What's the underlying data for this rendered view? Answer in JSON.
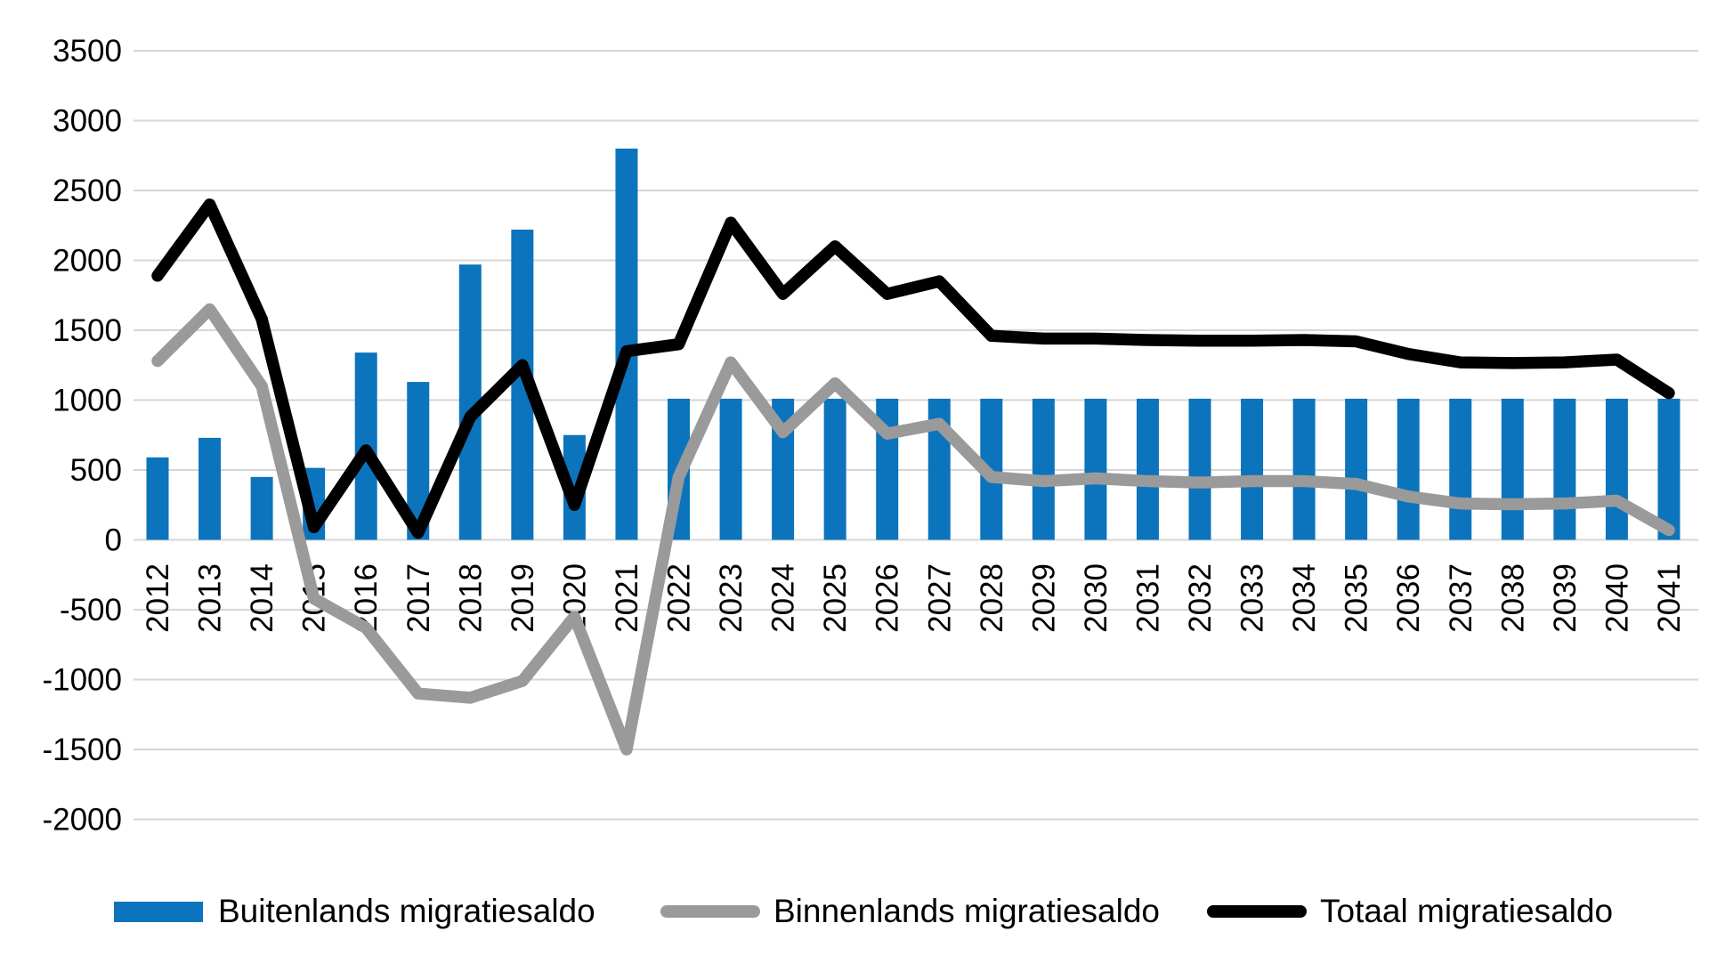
{
  "chart_data": {
    "type": "bar",
    "subtype": "combo-bar-line",
    "title": "",
    "xlabel": "",
    "ylabel": "",
    "categories": [
      "2012",
      "2013",
      "2014",
      "2015",
      "2016",
      "2017",
      "2018",
      "2019",
      "2020",
      "2021",
      "2022",
      "2023",
      "2024",
      "2025",
      "2026",
      "2027",
      "2028",
      "2029",
      "2030",
      "2031",
      "2032",
      "2033",
      "2034",
      "2035",
      "2036",
      "2037",
      "2038",
      "2039",
      "2040",
      "2041"
    ],
    "series": [
      {
        "name": "Buitenlands migratiesaldo",
        "type": "bar",
        "color": "#0c74bc",
        "values": [
          590,
          730,
          450,
          515,
          1340,
          1130,
          1970,
          2220,
          750,
          2800,
          1010,
          1010,
          1010,
          1010,
          1010,
          1010,
          1010,
          1010,
          1010,
          1010,
          1010,
          1010,
          1010,
          1010,
          1010,
          1010,
          1010,
          1010,
          1010,
          1010
        ]
      },
      {
        "name": "Binnenlands migratiesaldo",
        "type": "line",
        "color": "#9a9a9a",
        "values": [
          1280,
          1650,
          1100,
          -420,
          -630,
          -1100,
          -1130,
          -1010,
          -550,
          -1500,
          450,
          1270,
          770,
          1120,
          760,
          830,
          450,
          420,
          440,
          420,
          410,
          420,
          420,
          400,
          310,
          260,
          255,
          260,
          280,
          70
        ]
      },
      {
        "name": "Totaal migratiesaldo",
        "type": "line",
        "color": "#000000",
        "values": [
          1890,
          2400,
          1580,
          90,
          640,
          50,
          880,
          1250,
          250,
          1350,
          1400,
          2270,
          1760,
          2100,
          1760,
          1850,
          1460,
          1440,
          1440,
          1430,
          1425,
          1425,
          1430,
          1420,
          1330,
          1270,
          1265,
          1270,
          1290,
          1050
        ]
      }
    ],
    "ylim": [
      -2000,
      3500
    ],
    "ytick_step": 500,
    "y_tick_labels": [
      "3500",
      "3000",
      "2500",
      "2000",
      "1500",
      "1000",
      "500",
      "0",
      "-500",
      "-1000",
      "-1500",
      "-2000"
    ],
    "grid": "horizontal-only",
    "gridline_color": "#d6d6d6",
    "background_color": "#ffffff",
    "axis_text_color": "#000000",
    "legend_position": "bottom",
    "x_labels_rotated": true
  },
  "legend": {
    "items": [
      {
        "label": "Buitenlands migratiesaldo",
        "swatch": "bar-swatch",
        "color": "#0c74bc"
      },
      {
        "label": "Binnenlands migratiesaldo",
        "swatch": "line-swatch",
        "color": "#9a9a9a"
      },
      {
        "label": "Totaal migratiesaldo",
        "swatch": "line-swatch",
        "color": "#000000"
      }
    ]
  }
}
